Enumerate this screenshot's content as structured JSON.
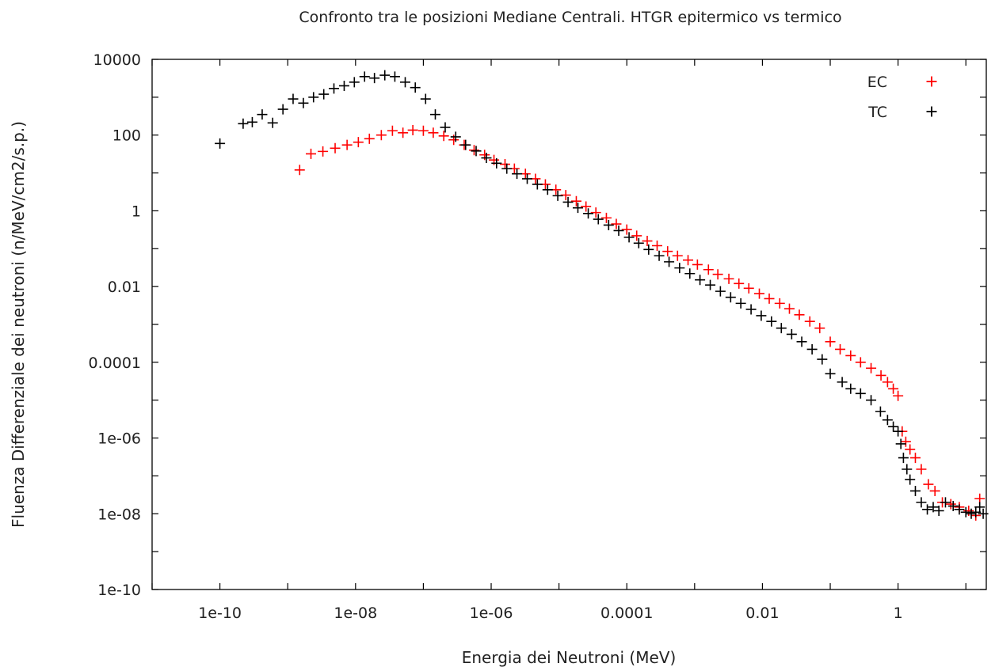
{
  "chart_data": {
    "type": "scatter",
    "title": "Confronto tra le posizioni Mediane Centrali. HTGR epitermico vs termico",
    "xlabel": "Energia dei Neutroni (MeV)",
    "ylabel": "Fluenza Differenziale dei neutroni (n/MeV/cm2/s.p.)",
    "x_scale": "log",
    "y_scale": "log",
    "xlim": [
      1e-11,
      20
    ],
    "ylim": [
      1e-10,
      10000
    ],
    "x_ticks": [
      {
        "value": 1e-10,
        "label": "1e-10"
      },
      {
        "value": 1e-08,
        "label": "1e-08"
      },
      {
        "value": 1e-06,
        "label": "1e-06"
      },
      {
        "value": 0.0001,
        "label": "0.0001"
      },
      {
        "value": 0.01,
        "label": "0.01"
      },
      {
        "value": 1,
        "label": "1"
      }
    ],
    "y_ticks": [
      {
        "value": 10000,
        "label": "10000"
      },
      {
        "value": 100,
        "label": "100"
      },
      {
        "value": 1,
        "label": "1"
      },
      {
        "value": 0.01,
        "label": "0.01"
      },
      {
        "value": 0.0001,
        "label": "0.0001"
      },
      {
        "value": 1e-06,
        "label": "1e-06"
      },
      {
        "value": 1e-08,
        "label": "1e-08"
      },
      {
        "value": 1e-10,
        "label": "1e-10"
      }
    ],
    "grid": false,
    "legend": "top-right",
    "series": [
      {
        "name": "EC",
        "color": "#ff0000",
        "marker": "plus",
        "points": [
          [
            1.5e-09,
            12
          ],
          [
            2.2e-09,
            32
          ],
          [
            3.3e-09,
            37
          ],
          [
            5e-09,
            45
          ],
          [
            7.5e-09,
            55
          ],
          [
            1.1e-08,
            65
          ],
          [
            1.6e-08,
            80
          ],
          [
            2.4e-08,
            100
          ],
          [
            3.5e-08,
            130
          ],
          [
            5e-08,
            115
          ],
          [
            7e-08,
            135
          ],
          [
            1e-07,
            130
          ],
          [
            1.4e-07,
            115
          ],
          [
            2e-07,
            95
          ],
          [
            2.8e-07,
            75
          ],
          [
            4e-07,
            55
          ],
          [
            5.6e-07,
            40
          ],
          [
            8e-07,
            30
          ],
          [
            1.1e-06,
            22
          ],
          [
            1.6e-06,
            17
          ],
          [
            2.2e-06,
            13
          ],
          [
            3.2e-06,
            9.5
          ],
          [
            4.5e-06,
            7
          ],
          [
            6.3e-06,
            5
          ],
          [
            9e-06,
            3.6
          ],
          [
            1.26e-05,
            2.6
          ],
          [
            1.8e-05,
            1.8
          ],
          [
            2.5e-05,
            1.3
          ],
          [
            3.5e-05,
            0.9
          ],
          [
            5e-05,
            0.65
          ],
          [
            7e-05,
            0.45
          ],
          [
            0.0001,
            0.32
          ],
          [
            0.00014,
            0.22
          ],
          [
            0.0002,
            0.16
          ],
          [
            0.00028,
            0.12
          ],
          [
            0.0004,
            0.085
          ],
          [
            0.00056,
            0.065
          ],
          [
            0.0008,
            0.05
          ],
          [
            0.0011,
            0.038
          ],
          [
            0.0016,
            0.028
          ],
          [
            0.0022,
            0.021
          ],
          [
            0.0032,
            0.016
          ],
          [
            0.0045,
            0.012
          ],
          [
            0.0063,
            0.009
          ],
          [
            0.009,
            0.0065
          ],
          [
            0.0126,
            0.0048
          ],
          [
            0.018,
            0.0036
          ],
          [
            0.025,
            0.0026
          ],
          [
            0.035,
            0.0018
          ],
          [
            0.05,
            0.0012
          ],
          [
            0.07,
            0.0008
          ],
          [
            0.1,
            0.00035
          ],
          [
            0.14,
            0.00022
          ],
          [
            0.2,
            0.00015
          ],
          [
            0.28,
            0.0001
          ],
          [
            0.4,
            7e-05
          ],
          [
            0.56,
            4.5e-05
          ],
          [
            0.7,
            3e-05
          ],
          [
            0.85,
            2e-05
          ],
          [
            1.0,
            1.3e-05
          ],
          [
            1.15,
            1.5e-06
          ],
          [
            1.3,
            8e-07
          ],
          [
            1.5,
            5e-07
          ],
          [
            1.8,
            3e-07
          ],
          [
            2.2,
            1.5e-07
          ],
          [
            2.8,
            6e-08
          ],
          [
            3.5,
            4e-08
          ],
          [
            4.5,
            2e-08
          ],
          [
            6,
            1.8e-08
          ],
          [
            8,
            1.5e-08
          ],
          [
            11,
            1.2e-08
          ],
          [
            14,
            9e-09
          ],
          [
            16,
            2.5e-08
          ]
        ]
      },
      {
        "name": "TC",
        "color": "#000000",
        "marker": "plus",
        "points": [
          [
            1e-10,
            60
          ],
          [
            2.2e-10,
            200
          ],
          [
            3e-10,
            220
          ],
          [
            4.2e-10,
            350
          ],
          [
            6e-10,
            210
          ],
          [
            8.5e-10,
            480
          ],
          [
            1.2e-09,
            900
          ],
          [
            1.7e-09,
            700
          ],
          [
            2.4e-09,
            1000
          ],
          [
            3.4e-09,
            1200
          ],
          [
            4.8e-09,
            1700
          ],
          [
            6.8e-09,
            2000
          ],
          [
            9.6e-09,
            2500
          ],
          [
            1.36e-08,
            3500
          ],
          [
            1.9e-08,
            3200
          ],
          [
            2.7e-08,
            3800
          ],
          [
            3.8e-08,
            3500
          ],
          [
            5.4e-08,
            2500
          ],
          [
            7.6e-08,
            1800
          ],
          [
            1.08e-07,
            900
          ],
          [
            1.5e-07,
            350
          ],
          [
            2.1e-07,
            160
          ],
          [
            3e-07,
            90
          ],
          [
            4.2e-07,
            55
          ],
          [
            6e-07,
            38
          ],
          [
            8.5e-07,
            25
          ],
          [
            1.2e-06,
            18
          ],
          [
            1.7e-06,
            13
          ],
          [
            2.4e-06,
            9.5
          ],
          [
            3.4e-06,
            7
          ],
          [
            4.8e-06,
            5
          ],
          [
            6.8e-06,
            3.6
          ],
          [
            9.6e-06,
            2.5
          ],
          [
            1.36e-05,
            1.7
          ],
          [
            1.9e-05,
            1.2
          ],
          [
            2.7e-05,
            0.85
          ],
          [
            3.8e-05,
            0.6
          ],
          [
            5.4e-05,
            0.42
          ],
          [
            7.6e-05,
            0.3
          ],
          [
            0.000108,
            0.2
          ],
          [
            0.00015,
            0.14
          ],
          [
            0.00021,
            0.095
          ],
          [
            0.0003,
            0.065
          ],
          [
            0.00042,
            0.045
          ],
          [
            0.0006,
            0.031
          ],
          [
            0.00085,
            0.022
          ],
          [
            0.0012,
            0.015
          ],
          [
            0.0017,
            0.011
          ],
          [
            0.0024,
            0.0075
          ],
          [
            0.0034,
            0.0052
          ],
          [
            0.0048,
            0.0036
          ],
          [
            0.0068,
            0.0025
          ],
          [
            0.0096,
            0.0017
          ],
          [
            0.0136,
            0.0012
          ],
          [
            0.019,
            0.0008
          ],
          [
            0.027,
            0.00055
          ],
          [
            0.038,
            0.00035
          ],
          [
            0.054,
            0.00022
          ],
          [
            0.076,
            0.00012
          ],
          [
            0.1,
            5e-05
          ],
          [
            0.15,
            3e-05
          ],
          [
            0.2,
            2e-05
          ],
          [
            0.28,
            1.5e-05
          ],
          [
            0.4,
            1e-05
          ],
          [
            0.55,
            5e-06
          ],
          [
            0.7,
            3e-06
          ],
          [
            0.85,
            2e-06
          ],
          [
            1.0,
            1.5e-06
          ],
          [
            1.1,
            7e-07
          ],
          [
            1.2,
            3e-07
          ],
          [
            1.35,
            1.5e-07
          ],
          [
            1.5,
            8e-08
          ],
          [
            1.8,
            4e-08
          ],
          [
            2.2,
            2e-08
          ],
          [
            2.7,
            1.3e-08
          ],
          [
            3.3,
            1.5e-08
          ],
          [
            4,
            1.2e-08
          ],
          [
            5,
            2e-08
          ],
          [
            6.5,
            1.6e-08
          ],
          [
            8,
            1.3e-08
          ],
          [
            10,
            1.1e-08
          ],
          [
            12,
            1e-08
          ],
          [
            14,
            1.1e-08
          ],
          [
            16,
            1.5e-08
          ],
          [
            18,
            1e-08
          ]
        ]
      }
    ]
  }
}
